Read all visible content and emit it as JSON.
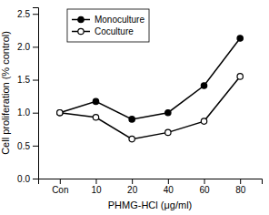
{
  "chart_data": {
    "type": "line",
    "categories": [
      "Con",
      "10",
      "20",
      "40",
      "60",
      "80"
    ],
    "series": [
      {
        "name": "Monoculture",
        "color": "#000000",
        "marker": "circle",
        "values": [
          1.0,
          1.17,
          0.9,
          1.0,
          1.41,
          2.13
        ]
      },
      {
        "name": "Coculture",
        "color": "#000000",
        "marker": "circle-open",
        "values": [
          1.0,
          0.93,
          0.6,
          0.7,
          0.87,
          1.55
        ]
      }
    ],
    "xlabel": "PHMG-HCl (μg/ml)",
    "ylabel": "Cell proliferation (% control)",
    "ylim": [
      0.0,
      2.6
    ],
    "yticks": [
      {
        "value": 0.0,
        "label": "0.0"
      },
      {
        "value": 0.5,
        "label": "0.5"
      },
      {
        "value": 1.0,
        "label": "1.0"
      },
      {
        "value": 1.5,
        "label": "1.5"
      },
      {
        "value": 2.0,
        "label": "2.0"
      },
      {
        "value": 2.5,
        "label": "2.5"
      }
    ],
    "legend": "upper left"
  }
}
